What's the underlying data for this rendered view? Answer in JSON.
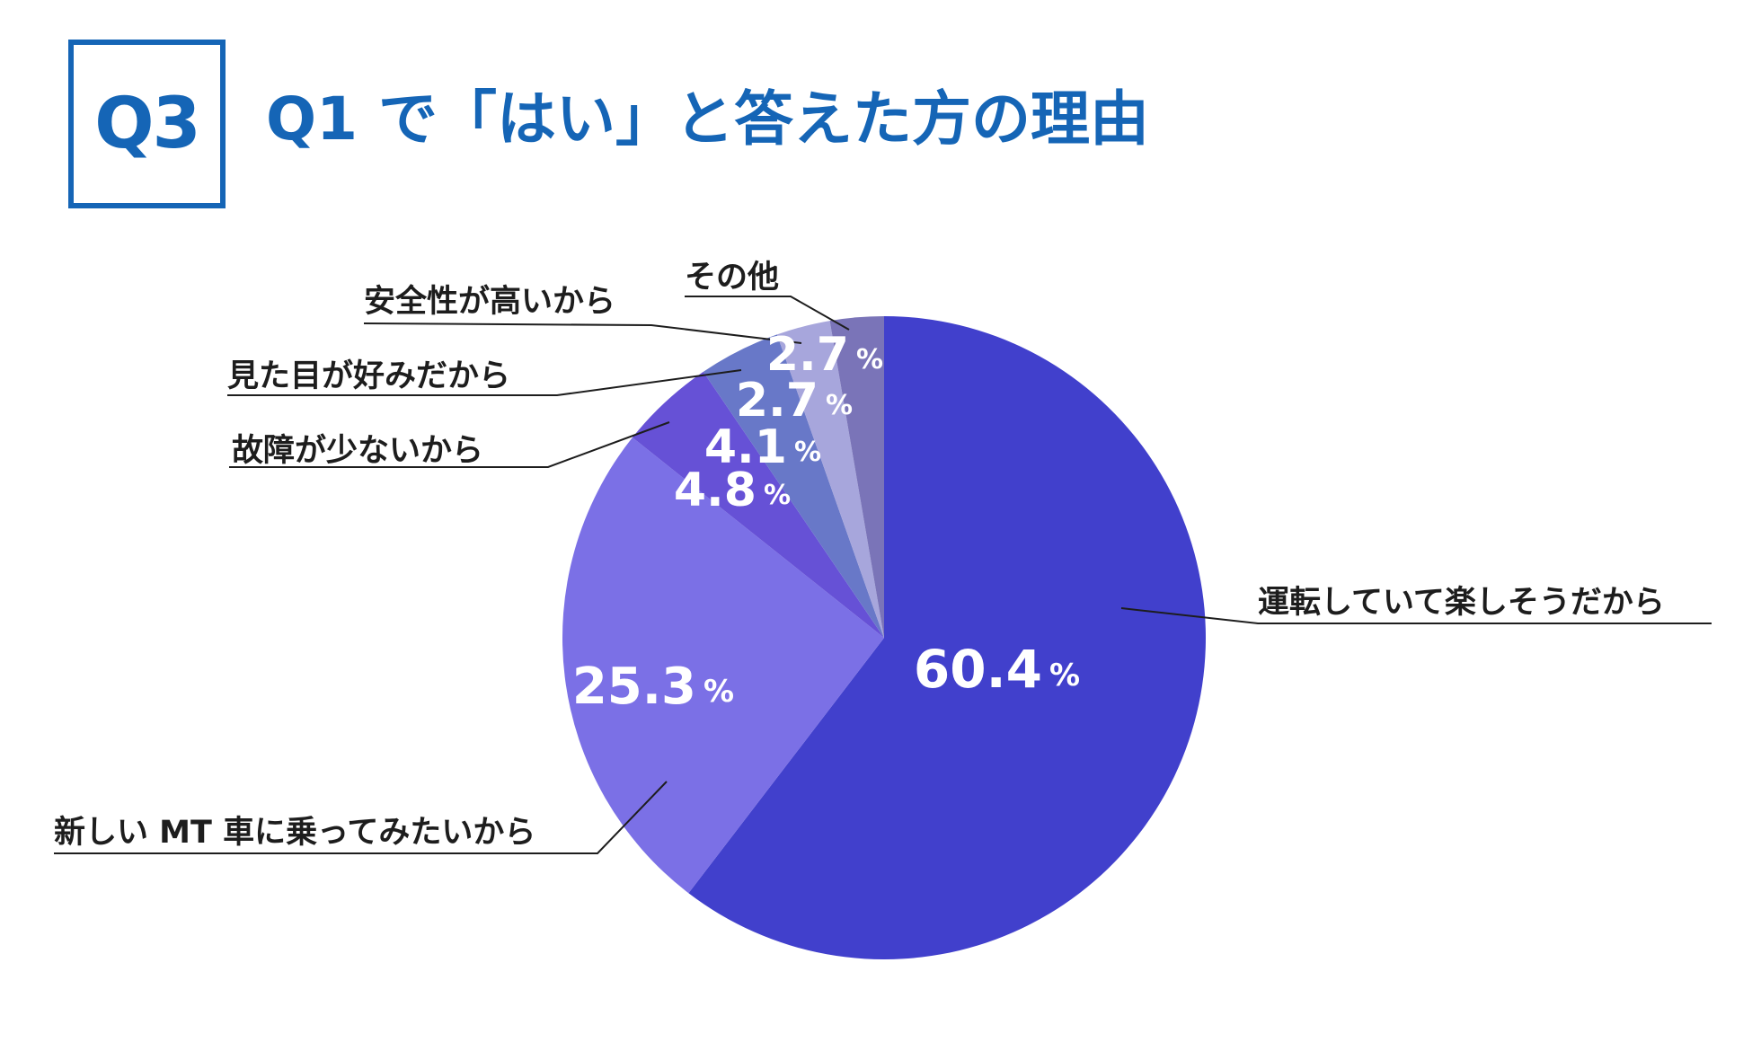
{
  "header": {
    "question_number": "Q3",
    "title": "Q1 で「はい」と答えた方の理由"
  },
  "chart_data": {
    "type": "pie",
    "categories": [
      "運転していて楽しそうだから",
      "新しい MT 車に乗ってみたいから",
      "故障が少ないから",
      "見た目が好みだから",
      "安全性が高いから",
      "その他"
    ],
    "values": [
      60.4,
      25.3,
      4.8,
      4.1,
      2.7,
      2.7
    ],
    "value_labels": [
      "60.4",
      "25.3",
      "4.8",
      "4.1",
      "2.7",
      "2.7"
    ],
    "unit": "%",
    "colors": [
      "#4140cc",
      "#7b70e6",
      "#6651d6",
      "#6878c8",
      "#a7a6dc",
      "#7a74b8"
    ]
  }
}
